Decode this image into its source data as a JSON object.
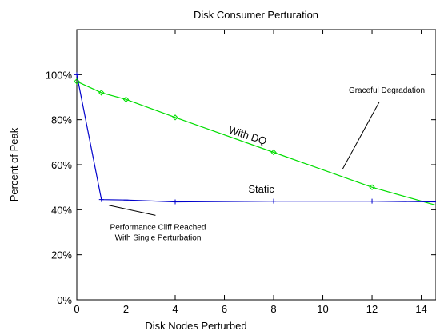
{
  "chart_data": {
    "type": "line",
    "title": "Disk Consumer Perturation",
    "xlabel": "Disk Nodes Perturbed",
    "ylabel": "Percent of Peak",
    "xlim": [
      0,
      14.6
    ],
    "ylim": [
      0,
      120
    ],
    "xticks": [
      0,
      2,
      4,
      6,
      8,
      10,
      12,
      14
    ],
    "yticks": [
      0,
      20,
      40,
      60,
      80,
      100
    ],
    "ytick_labels": [
      "0%",
      "20%",
      "40%",
      "60%",
      "80%",
      "100%"
    ],
    "grid": false,
    "legend": "none",
    "series": [
      {
        "name": "With DQ",
        "color": "#00dd00",
        "marker": "diamond",
        "x": [
          0,
          1,
          2,
          4,
          8,
          12,
          14.6
        ],
        "y": [
          97,
          92,
          89,
          81,
          65.5,
          50,
          42
        ],
        "marker_x": [
          0,
          1,
          2,
          4,
          8,
          12
        ]
      },
      {
        "name": "Static",
        "color": "#0000cc",
        "marker": "plus",
        "x": [
          0,
          1,
          2,
          4,
          8,
          12,
          14.6
        ],
        "y": [
          100,
          44.5,
          44.3,
          43.5,
          43.8,
          43.8,
          43.5
        ],
        "marker_x": [
          0,
          1,
          2,
          4,
          8,
          12
        ]
      }
    ],
    "annotations": [
      {
        "id": "graceful",
        "lines": [
          "Graceful Degradation"
        ]
      },
      {
        "id": "cliff",
        "lines": [
          "Performance Cliff Reached",
          "With Single Perturbation"
        ]
      }
    ]
  }
}
